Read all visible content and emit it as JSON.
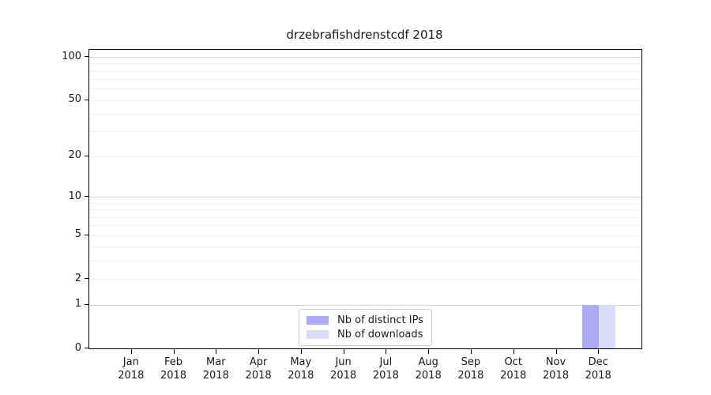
{
  "chart_data": {
    "type": "bar",
    "title": "drzebrafishdrenstcdf 2018",
    "categories": [
      "Jan 2018",
      "Feb 2018",
      "Mar 2018",
      "Apr 2018",
      "May 2018",
      "Jun 2018",
      "Jul 2018",
      "Aug 2018",
      "Sep 2018",
      "Oct 2018",
      "Nov 2018",
      "Dec 2018"
    ],
    "series": [
      {
        "name": "Nb of distinct IPs",
        "color": "#aaaaf5",
        "values": [
          0,
          0,
          0,
          0,
          0,
          0,
          0,
          0,
          0,
          0,
          0,
          1
        ]
      },
      {
        "name": "Nb of downloads",
        "color": "#dcdcf8",
        "values": [
          0,
          0,
          0,
          0,
          0,
          0,
          0,
          0,
          0,
          0,
          0,
          1
        ]
      }
    ],
    "yscale": "log1p",
    "ylim": [
      0,
      112
    ],
    "y_ticks": [
      0,
      1,
      2,
      5,
      10,
      20,
      50,
      100
    ],
    "y_gridlines_major": [
      1,
      10,
      100
    ],
    "y_gridlines_minor": [
      2,
      3,
      4,
      5,
      6,
      7,
      8,
      9,
      20,
      30,
      40,
      50,
      60,
      70,
      80,
      90
    ],
    "grid": "horizontal",
    "legend_position": "bottom-center",
    "xlabel": "",
    "ylabel": ""
  },
  "colors": {
    "grid_major": "#d2d2d2",
    "grid_minor": "#ededed",
    "spine": "#000000",
    "text": "#1a1a1a",
    "legend_border": "#cccccc",
    "background": "#ffffff"
  }
}
